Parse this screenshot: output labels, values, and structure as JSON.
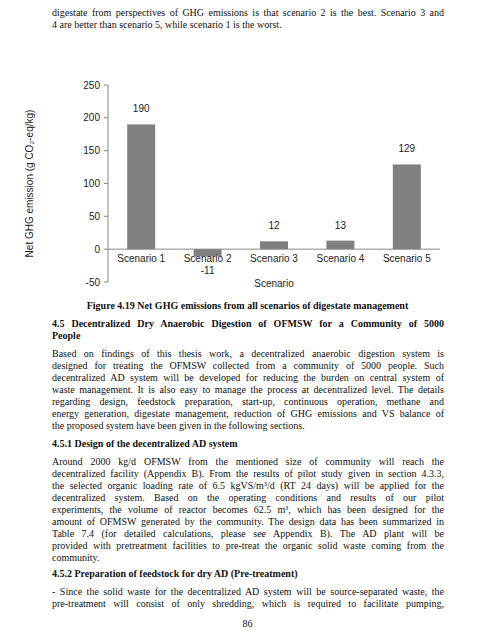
{
  "chart_data": {
    "type": "bar",
    "title": "Figure 4.19 Net GHG emissions from all scenarios of digestate management",
    "x_label": "Scenario",
    "y_label": "Net GHG emission (g CO₂-eq/kg)",
    "categories": [
      "Scenario 1",
      "Scenario 2",
      "Scenario 3",
      "Scenario 4",
      "Scenario 5"
    ],
    "values": [
      190,
      -11,
      12,
      13,
      129
    ],
    "color": "#808080",
    "ylim": [
      -50,
      250
    ],
    "yticks": [
      -50,
      0,
      50,
      100,
      150,
      200,
      250
    ],
    "grid": false,
    "data_labels": true
  },
  "page": {
    "intro_lines": [
      "digestate from perspectives of GHG emissions is that scenario 2 is the best. Scenario 3 and",
      "4 are better than scenario 5, while scenario 1 is the worst."
    ],
    "sections": [
      {
        "heading_lines": [
          "4.5 Decentralized Dry Anaerobic Digestion of OFMSW for a Community of 5000",
          "People"
        ],
        "lines": [
          "Based on findings of this thesis work, a decentralized anaerobic digestion system is",
          "designed for treating the OFMSW collected from a community of 5000 people. Such",
          "decentralized AD system will be developed for reducing the burden on central system of",
          "waste management. It is also easy to manage the process at decentralized level. The details",
          "regarding design, feedstock preparation, start-up, continuous operation, methane and",
          "energy generation, digestate management, reduction of GHG emissions and VS balance of",
          "the proposed system have been given in the following sections."
        ]
      },
      {
        "heading_lines": [
          "4.5.1 Design of the decentralized AD system"
        ],
        "lines": [
          "Around 2000 kg/d OFMSW from the mentioned size of community will reach the",
          "decentralized facility (Appendix B). From the results of pilot study given in section 4.3.3,",
          "the selected organic loading rate of 6.5 kgVS/m³/d (RT 24 days) will be applied for the",
          "decentralized system. Based on the operating conditions and results of our pilot",
          "experiments, the volume of reactor becomes 62.5 m³, which has been designed for the",
          "amount of OFMSW generated by the community. The design data has been summarized in",
          "Table 7.4 (for detailed calculations, please see Appendix B). The AD plant will be",
          "provided with pretreatment facilities to pre-treat the organic solid waste coming from the",
          "community."
        ]
      },
      {
        "heading_lines": [
          "4.5.2 Preparation of feedstock for dry AD (Pre-treatment)"
        ],
        "lines": [
          "- Since the solid waste for the decentralized AD system will be source-separated waste, the",
          "pre-treatment will consist of only shredding, which is required to facilitate pumping,"
        ]
      }
    ],
    "page_number": 86
  }
}
